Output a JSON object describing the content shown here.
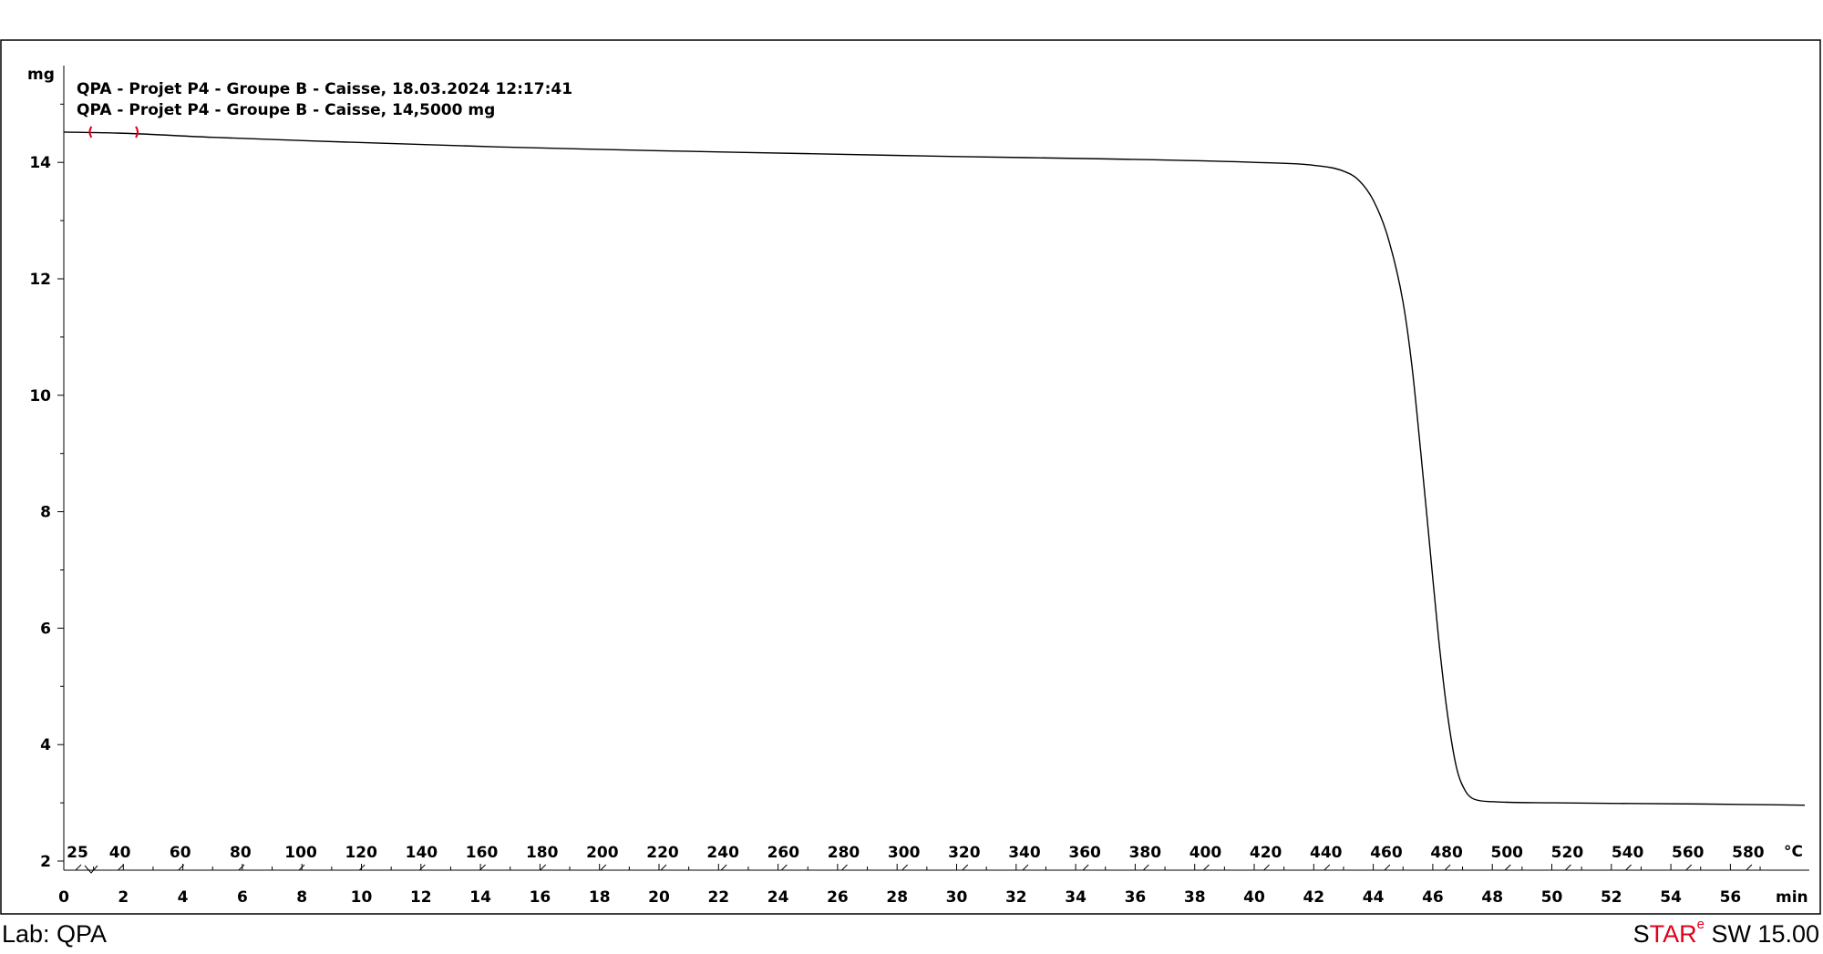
{
  "footer": {
    "lab": "Lab: QPA",
    "brand": {
      "s": "S",
      "tar": "TAR",
      "e": "e",
      "sw": " SW 15.00"
    }
  },
  "colors": {
    "curve": "#000000",
    "marker": "#e0001b",
    "brand_red": "#e0001b"
  },
  "chart_data": {
    "type": "line",
    "title_lines": [
      "QPA - Projet P4 - Groupe B - Caisse, 18.03.2024 12:17:41",
      "QPA - Projet P4 - Groupe B - Caisse, 14,5000 mg"
    ],
    "ylabel": "mg",
    "xlabel": "min",
    "x2label": "°C",
    "ylim": [
      2,
      15
    ],
    "xlim": [
      0,
      58.5
    ],
    "y_ticks": [
      2,
      4,
      6,
      8,
      10,
      12,
      14
    ],
    "x_ticks": [
      0,
      2,
      4,
      6,
      8,
      10,
      12,
      14,
      16,
      18,
      20,
      22,
      24,
      26,
      28,
      30,
      32,
      34,
      36,
      38,
      40,
      42,
      44,
      46,
      48,
      50,
      52,
      54,
      56
    ],
    "temp_ticks": [
      25,
      40,
      60,
      80,
      100,
      120,
      140,
      160,
      180,
      200,
      220,
      240,
      260,
      280,
      300,
      320,
      340,
      360,
      380,
      400,
      420,
      440,
      460,
      480,
      500,
      520,
      540,
      560,
      580
    ],
    "grid": false,
    "markers_x": [
      0.9,
      2.45
    ],
    "series": [
      {
        "x": [
          0,
          2,
          5,
          10,
          15,
          20,
          25,
          30,
          35,
          40,
          42,
          43,
          43.5,
          44,
          44.5,
          45,
          45.3,
          45.6,
          45.9,
          46.2,
          46.5,
          46.8,
          47.1,
          47.4,
          48,
          50,
          55,
          58.5
        ],
        "values": [
          14.52,
          14.5,
          14.43,
          14.34,
          14.26,
          14.2,
          14.15,
          14.1,
          14.06,
          14.0,
          13.95,
          13.85,
          13.7,
          13.35,
          12.7,
          11.6,
          10.5,
          9.0,
          7.4,
          5.8,
          4.5,
          3.6,
          3.2,
          3.06,
          3.02,
          3.0,
          2.98,
          2.96
        ]
      }
    ]
  }
}
